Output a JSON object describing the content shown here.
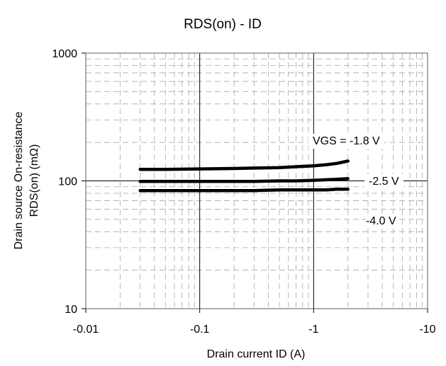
{
  "chart_data": {
    "type": "line",
    "title": "RDS(on) - ID",
    "xlabel": "Drain current ID (A)",
    "ylabel_lines": [
      "Drain source On-resistance",
      "RDS(on) (mΩ)"
    ],
    "x_scale": "log",
    "y_scale": "log",
    "xlim": [
      -0.01,
      -10
    ],
    "ylim": [
      10,
      1000
    ],
    "x_ticks": [
      {
        "value": -0.01,
        "label": "-0.01"
      },
      {
        "value": -0.1,
        "label": "-0.1"
      },
      {
        "value": -1,
        "label": "-1"
      },
      {
        "value": -10,
        "label": "-10"
      }
    ],
    "y_ticks": [
      {
        "value": 10,
        "label": "10"
      },
      {
        "value": 100,
        "label": "100"
      },
      {
        "value": 1000,
        "label": "1000"
      }
    ],
    "grid": true,
    "series": [
      {
        "name": "VGS = -1.8 V",
        "x": [
          -0.03,
          -0.05,
          -0.1,
          -0.2,
          -0.3,
          -0.5,
          -0.7,
          -1.0,
          -1.3,
          -1.6,
          -2.0
        ],
        "y": [
          123,
          123,
          124,
          125,
          126,
          127,
          129,
          131,
          134,
          137,
          143
        ]
      },
      {
        "name": "-2.5 V",
        "x": [
          -0.03,
          -0.05,
          -0.1,
          -0.2,
          -0.3,
          -0.5,
          -0.7,
          -1.0,
          -1.3,
          -1.6,
          -2.0
        ],
        "y": [
          99,
          99,
          99,
          99,
          99,
          100,
          100,
          101,
          102,
          103,
          104
        ]
      },
      {
        "name": "-4.0 V",
        "x": [
          -0.03,
          -0.05,
          -0.1,
          -0.2,
          -0.3,
          -0.5,
          -0.7,
          -1.0,
          -1.3,
          -1.6,
          -2.0
        ],
        "y": [
          84,
          84,
          84,
          84,
          84,
          85,
          85,
          85,
          85,
          86,
          86
        ]
      }
    ]
  }
}
